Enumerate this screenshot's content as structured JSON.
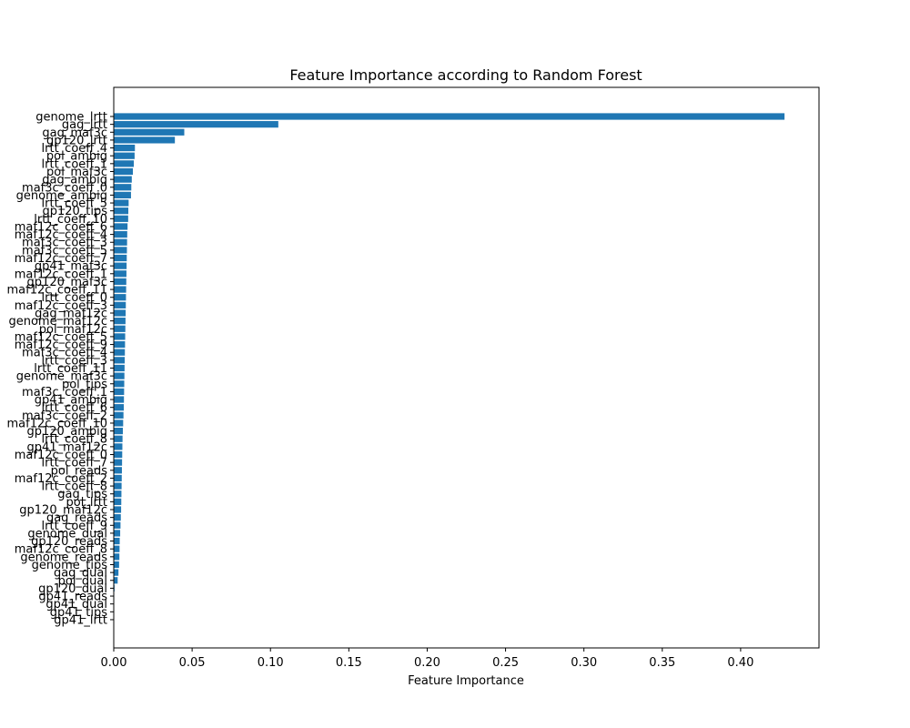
{
  "chart_data": {
    "type": "bar",
    "orientation": "horizontal",
    "title": "Feature Importance according to Random Forest",
    "xlabel": "Feature Importance",
    "ylabel": "",
    "xlim": [
      0.0,
      0.45
    ],
    "xticks": [
      "0.00",
      "0.05",
      "0.10",
      "0.15",
      "0.20",
      "0.25",
      "0.30",
      "0.35",
      "0.40"
    ],
    "grid": false,
    "bar_color": "#1f77b4",
    "categories": [
      "genome_lrtt",
      "gag_lrtt",
      "gag_maf3c",
      "gp120_lrtt",
      "lrtt_coeff_4",
      "pol_ambig",
      "lrtt_coeff_1",
      "pol_maf3c",
      "gag_ambig",
      "maf3c_coeff_0",
      "genome_ambig",
      "lrtt_coeff_5",
      "gp120_tips",
      "lrtt_coeff_10",
      "maf12c_coeff_6",
      "maf12c_coeff_4",
      "maf3c_coeff_3",
      "maf3c_coeff_5",
      "maf12c_coeff_7",
      "gp41_maf3c",
      "maf12c_coeff_1",
      "gp120_maf3c",
      "maf12c_coeff_11",
      "lrtt_coeff_0",
      "maf12c_coeff_3",
      "gag_maf12c",
      "genome_maf12c",
      "pol_maf12c",
      "maf12c_coeff_5",
      "maf12c_coeff_9",
      "maf3c_coeff_4",
      "lrtt_coeff_3",
      "lrtt_coeff_11",
      "genome_maf3c",
      "pol_tips",
      "maf3c_coeff_1",
      "gp41_ambig",
      "lrtt_coeff_6",
      "maf3c_coeff_2",
      "maf12c_coeff_10",
      "gp120_ambig",
      "lrtt_coeff_8",
      "gp41_maf12c",
      "maf12c_coeff_0",
      "lrtt_coeff_7",
      "pol_reads",
      "maf12c_coeff_2",
      "lrtt_coeff_8",
      "gag_tips",
      "pol_lrtt",
      "gp120_maf12c",
      "gag_reads",
      "lrtt_coeff_9",
      "genome_dual",
      "gp120_reads",
      "maf12c_coeff_8",
      "genome_reads",
      "genome_tips",
      "gag_dual",
      "pol_dual",
      "gp120_dual",
      "gp41_reads",
      "gp41_dual",
      "gp41_tips",
      "gp41_lrtt"
    ],
    "values": [
      0.428,
      0.105,
      0.045,
      0.039,
      0.0135,
      0.0133,
      0.0128,
      0.0122,
      0.0115,
      0.0112,
      0.011,
      0.0095,
      0.0093,
      0.0092,
      0.0088,
      0.0086,
      0.0085,
      0.0084,
      0.0083,
      0.0082,
      0.0081,
      0.008,
      0.0079,
      0.0078,
      0.0077,
      0.0076,
      0.0075,
      0.0074,
      0.0073,
      0.0072,
      0.0071,
      0.007,
      0.0069,
      0.0068,
      0.0067,
      0.0066,
      0.0065,
      0.0064,
      0.0062,
      0.006,
      0.0058,
      0.0056,
      0.0055,
      0.0054,
      0.0053,
      0.0052,
      0.0051,
      0.005,
      0.0049,
      0.0048,
      0.0047,
      0.0045,
      0.0043,
      0.0041,
      0.0038,
      0.0037,
      0.0036,
      0.0034,
      0.003,
      0.0025,
      0.0005,
      0.0003,
      0.0002,
      0.0001,
      0.0001
    ]
  }
}
